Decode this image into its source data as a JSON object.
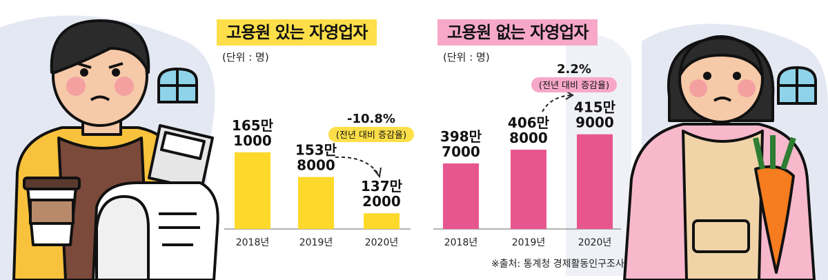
{
  "colors": {
    "employer_bar": "#FDD92B",
    "employer_title_bg": "#FEDF49",
    "no_employer_bar": "#E8568F",
    "no_employer_title_bg": "#F7A8C8",
    "background_blob": "#E4E8F2"
  },
  "chart_data": [
    {
      "type": "bar",
      "title": "고용원 있는 자영업자",
      "unit_label": "(단위 : 명)",
      "categories": [
        "2018년",
        "2019년",
        "2020년"
      ],
      "values": [
        1651000,
        1538000,
        1372000
      ],
      "value_labels": [
        {
          "line1": "165만",
          "line2": "1000"
        },
        {
          "line1": "153만",
          "line2": "8000"
        },
        {
          "line1": "137만",
          "line2": "2000"
        }
      ],
      "change": {
        "value": "-10.8%",
        "label": "(전년 대비 증감율)"
      }
    },
    {
      "type": "bar",
      "title": "고용원 없는 자영업자",
      "unit_label": "(단위 : 명)",
      "categories": [
        "2018년",
        "2019년",
        "2020년"
      ],
      "values": [
        3987000,
        4068000,
        4159000
      ],
      "value_labels": [
        {
          "line1": "398만",
          "line2": "7000"
        },
        {
          "line1": "406만",
          "line2": "8000"
        },
        {
          "line1": "415만",
          "line2": "9000"
        }
      ],
      "change": {
        "value": "2.2%",
        "label": "(전년 대비 증감율)"
      }
    }
  ],
  "source": "※출처: 통계청 경제활동인구조사"
}
